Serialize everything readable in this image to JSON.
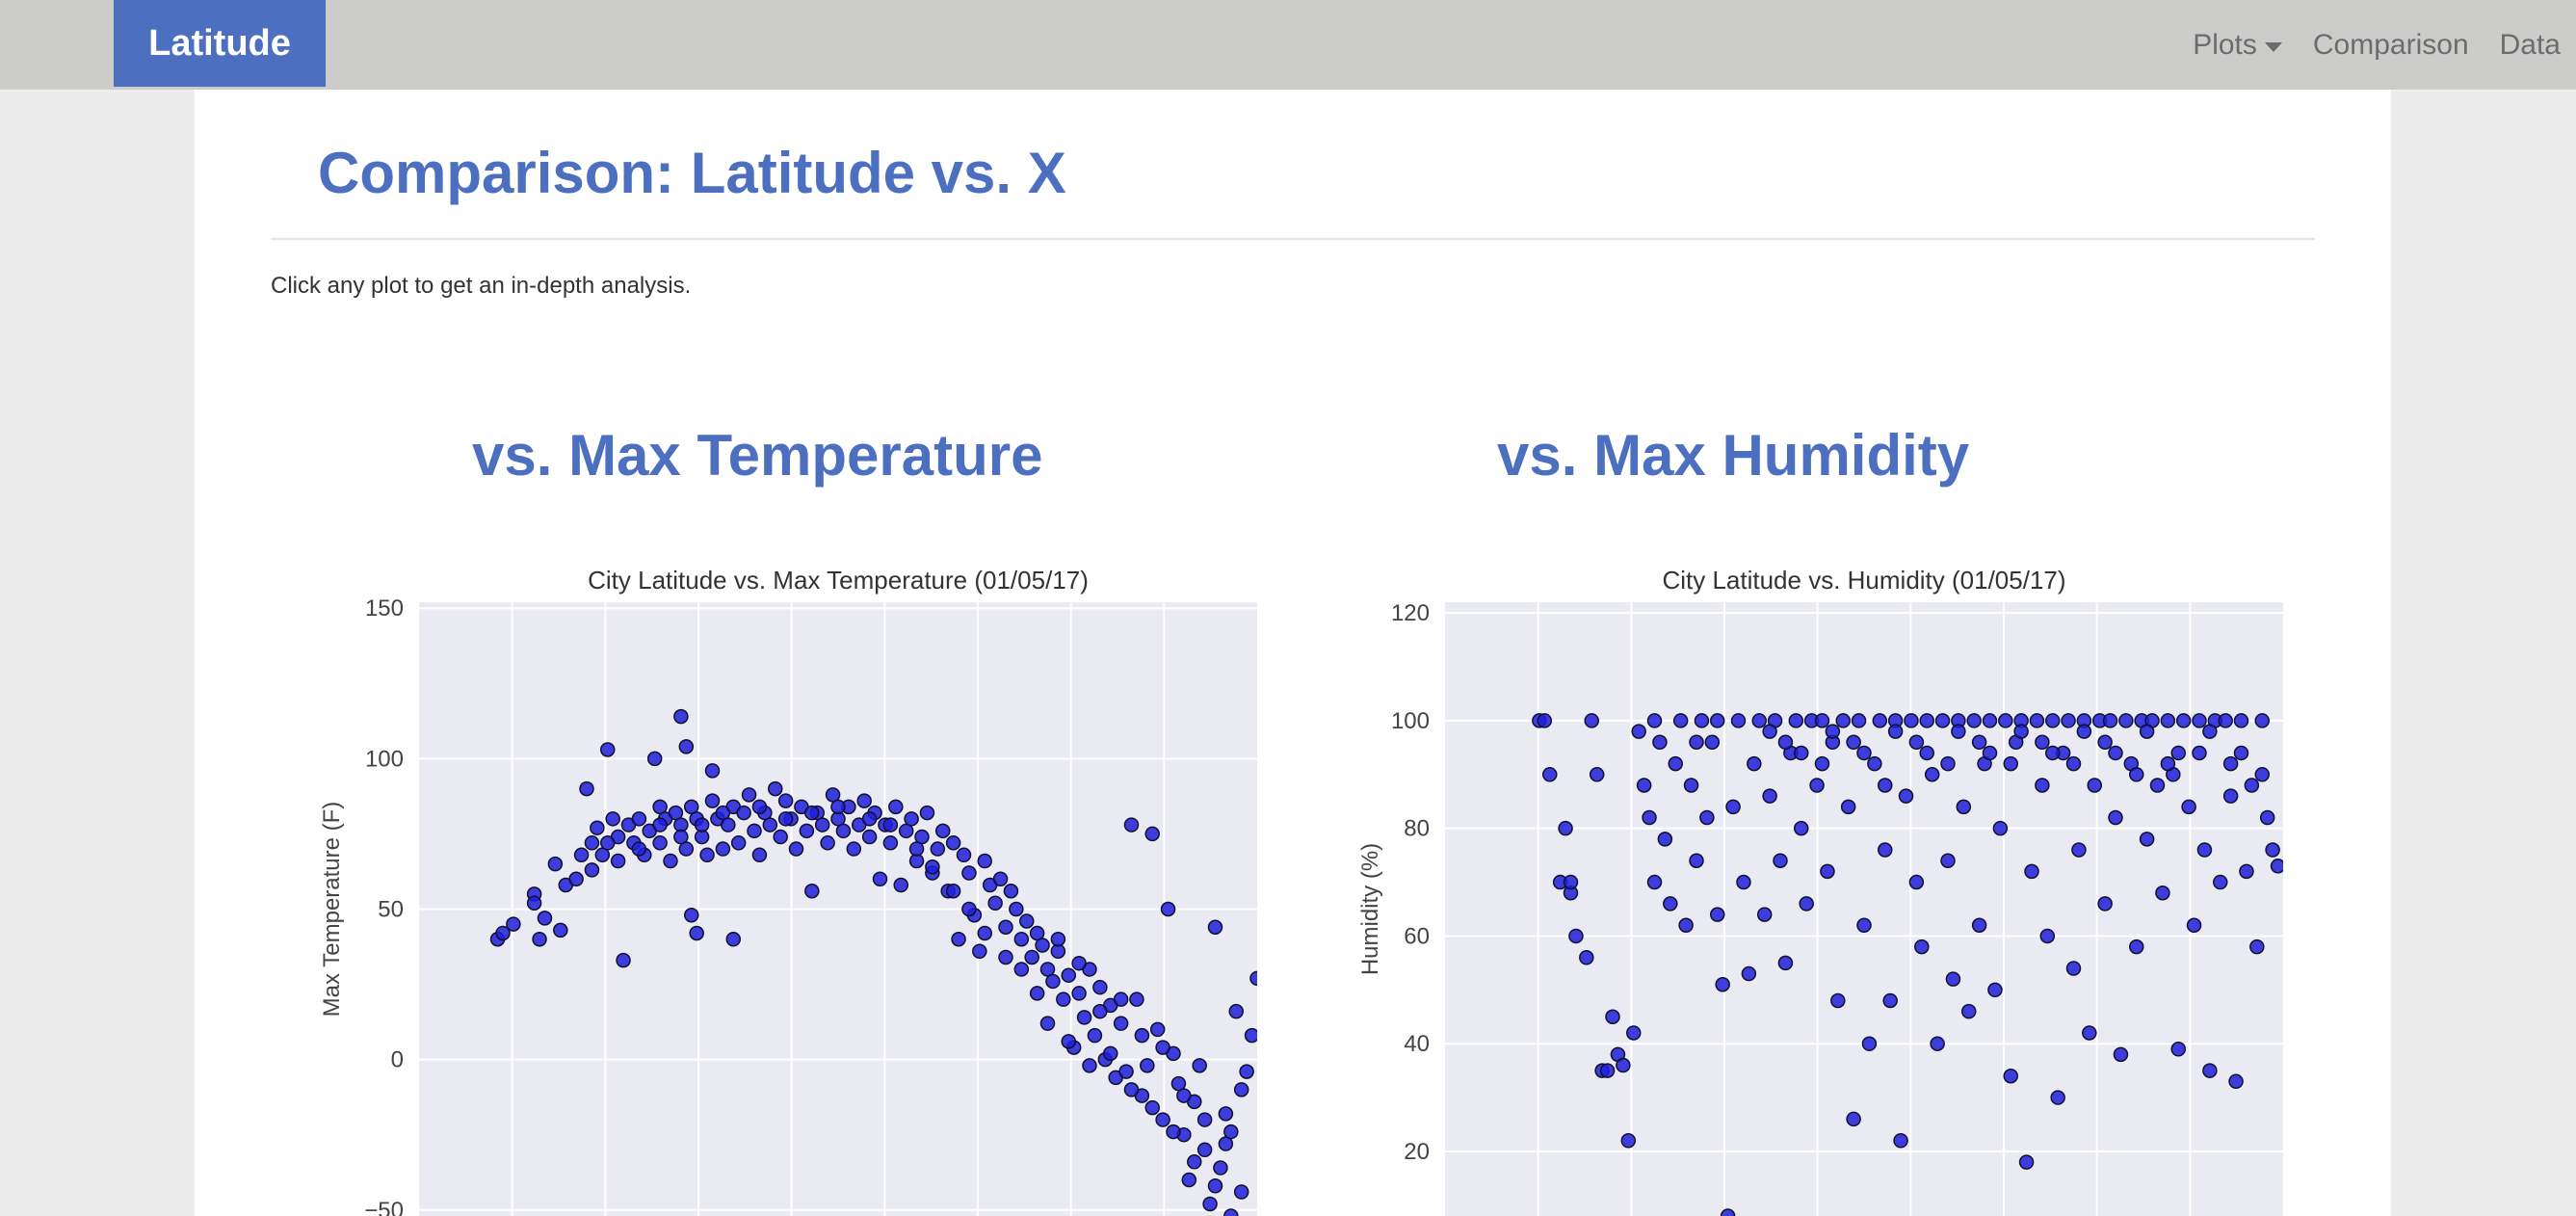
{
  "brand": "Latitude",
  "nav": {
    "plots": "Plots",
    "comparison": "Comparison",
    "data": "Data"
  },
  "page": {
    "title": "Comparison: Latitude vs. X",
    "instructions": "Click any plot to get an in-depth analysis."
  },
  "colors": {
    "brand": "#4d6fbf",
    "navbar": "#cccdcb",
    "plot_bg": "#eaeaf2",
    "marker": "#1f1fdb"
  },
  "plots": [
    {
      "heading": "vs. Max Temperature"
    },
    {
      "heading": "vs. Max Humidity"
    }
  ],
  "chart_data": [
    {
      "type": "scatter",
      "title": "City Latitude vs. Max Temperature (01/05/17)",
      "xlabel": "",
      "ylabel": "Max Temperature (F)",
      "xlim": [
        -60,
        100
      ],
      "ylim": [
        -52,
        152
      ],
      "yticks": [
        150,
        100,
        50,
        0,
        -50
      ],
      "grid": true,
      "points": [
        [
          -45,
          40
        ],
        [
          -44,
          42
        ],
        [
          -42,
          45
        ],
        [
          -38,
          55
        ],
        [
          -38,
          52
        ],
        [
          -37,
          40
        ],
        [
          -36,
          47
        ],
        [
          -34,
          65
        ],
        [
          -33,
          43
        ],
        [
          -32,
          58
        ],
        [
          -30,
          60
        ],
        [
          -29,
          68
        ],
        [
          -28,
          90
        ],
        [
          -27,
          63
        ],
        [
          -27,
          72
        ],
        [
          -26,
          77
        ],
        [
          -25,
          68
        ],
        [
          -24,
          103
        ],
        [
          -23,
          80
        ],
        [
          -22,
          74
        ],
        [
          -22,
          66
        ],
        [
          -21,
          33
        ],
        [
          -20,
          78
        ],
        [
          -19,
          72
        ],
        [
          -18,
          80
        ],
        [
          -17,
          68
        ],
        [
          -16,
          76
        ],
        [
          -15,
          100
        ],
        [
          -14,
          84
        ],
        [
          -14,
          72
        ],
        [
          -13,
          80
        ],
        [
          -12,
          66
        ],
        [
          -11,
          82
        ],
        [
          -10,
          114
        ],
        [
          -10,
          78
        ],
        [
          -9,
          104
        ],
        [
          -9,
          70
        ],
        [
          -8,
          84
        ],
        [
          -8,
          48
        ],
        [
          -7,
          42
        ],
        [
          -7,
          80
        ],
        [
          -6,
          74
        ],
        [
          -5,
          68
        ],
        [
          -4,
          86
        ],
        [
          -4,
          96
        ],
        [
          -3,
          80
        ],
        [
          -2,
          70
        ],
        [
          -1,
          78
        ],
        [
          0,
          84
        ],
        [
          0,
          40
        ],
        [
          1,
          72
        ],
        [
          2,
          82
        ],
        [
          3,
          88
        ],
        [
          4,
          76
        ],
        [
          5,
          68
        ],
        [
          6,
          82
        ],
        [
          7,
          78
        ],
        [
          8,
          90
        ],
        [
          9,
          74
        ],
        [
          10,
          86
        ],
        [
          11,
          80
        ],
        [
          12,
          70
        ],
        [
          13,
          84
        ],
        [
          14,
          76
        ],
        [
          15,
          56
        ],
        [
          16,
          82
        ],
        [
          17,
          78
        ],
        [
          18,
          72
        ],
        [
          19,
          88
        ],
        [
          20,
          80
        ],
        [
          21,
          76
        ],
        [
          22,
          84
        ],
        [
          23,
          70
        ],
        [
          24,
          78
        ],
        [
          25,
          86
        ],
        [
          26,
          74
        ],
        [
          27,
          82
        ],
        [
          28,
          60
        ],
        [
          29,
          78
        ],
        [
          30,
          72
        ],
        [
          31,
          84
        ],
        [
          32,
          58
        ],
        [
          33,
          76
        ],
        [
          34,
          80
        ],
        [
          35,
          66
        ],
        [
          36,
          74
        ],
        [
          37,
          82
        ],
        [
          38,
          62
        ],
        [
          39,
          70
        ],
        [
          40,
          76
        ],
        [
          41,
          56
        ],
        [
          42,
          72
        ],
        [
          43,
          40
        ],
        [
          44,
          68
        ],
        [
          45,
          62
        ],
        [
          46,
          48
        ],
        [
          47,
          36
        ],
        [
          48,
          66
        ],
        [
          49,
          58
        ],
        [
          50,
          52
        ],
        [
          51,
          60
        ],
        [
          52,
          44
        ],
        [
          53,
          56
        ],
        [
          54,
          50
        ],
        [
          55,
          40
        ],
        [
          56,
          46
        ],
        [
          57,
          34
        ],
        [
          58,
          42
        ],
        [
          59,
          38
        ],
        [
          60,
          30
        ],
        [
          61,
          26
        ],
        [
          62,
          36
        ],
        [
          63,
          20
        ],
        [
          64,
          28
        ],
        [
          65,
          4
        ],
        [
          66,
          22
        ],
        [
          67,
          14
        ],
        [
          68,
          30
        ],
        [
          69,
          8
        ],
        [
          70,
          24
        ],
        [
          71,
          0
        ],
        [
          72,
          18
        ],
        [
          73,
          -6
        ],
        [
          74,
          12
        ],
        [
          75,
          -4
        ],
        [
          76,
          78
        ],
        [
          77,
          20
        ],
        [
          78,
          -12
        ],
        [
          79,
          -2
        ],
        [
          80,
          75
        ],
        [
          81,
          10
        ],
        [
          82,
          -20
        ],
        [
          83,
          50
        ],
        [
          84,
          2
        ],
        [
          85,
          -8
        ],
        [
          86,
          -25
        ],
        [
          87,
          -40
        ],
        [
          88,
          -14
        ],
        [
          89,
          -2
        ],
        [
          90,
          -30
        ],
        [
          91,
          -48
        ],
        [
          92,
          44
        ],
        [
          93,
          -36
        ],
        [
          94,
          -18
        ],
        [
          95,
          -52
        ],
        [
          96,
          16
        ],
        [
          97,
          -44
        ],
        [
          98,
          -4
        ],
        [
          99,
          8
        ],
        [
          100,
          27
        ],
        [
          58,
          22
        ],
        [
          55,
          30
        ],
        [
          52,
          34
        ],
        [
          48,
          42
        ],
        [
          45,
          50
        ],
        [
          42,
          56
        ],
        [
          38,
          64
        ],
        [
          35,
          70
        ],
        [
          30,
          78
        ],
        [
          26,
          80
        ],
        [
          20,
          84
        ],
        [
          15,
          82
        ],
        [
          10,
          80
        ],
        [
          5,
          84
        ],
        [
          -2,
          82
        ],
        [
          -6,
          78
        ],
        [
          -10,
          74
        ],
        [
          -14,
          78
        ],
        [
          -18,
          70
        ],
        [
          -24,
          72
        ],
        [
          62,
          40
        ],
        [
          66,
          32
        ],
        [
          70,
          16
        ],
        [
          74,
          20
        ],
        [
          78,
          8
        ],
        [
          82,
          4
        ],
        [
          86,
          -12
        ],
        [
          90,
          -20
        ],
        [
          94,
          -28
        ],
        [
          97,
          -10
        ],
        [
          60,
          12
        ],
        [
          64,
          6
        ],
        [
          68,
          -2
        ],
        [
          72,
          2
        ],
        [
          76,
          -10
        ],
        [
          80,
          -16
        ],
        [
          84,
          -24
        ],
        [
          88,
          -34
        ],
        [
          92,
          -42
        ],
        [
          95,
          -24
        ]
      ]
    },
    {
      "type": "scatter",
      "title": "City Latitude vs. Humidity (01/05/17)",
      "xlabel": "",
      "ylabel": "Humidity (%)",
      "xlim": [
        -60,
        100
      ],
      "ylim": [
        8,
        122
      ],
      "yticks": [
        120,
        100,
        80,
        60,
        40,
        20
      ],
      "grid": true,
      "points": [
        [
          -42,
          100
        ],
        [
          -41,
          100
        ],
        [
          -40,
          90
        ],
        [
          -38,
          70
        ],
        [
          -37,
          80
        ],
        [
          -36,
          68
        ],
        [
          -35,
          60
        ],
        [
          -33,
          56
        ],
        [
          -32,
          100
        ],
        [
          -31,
          90
        ],
        [
          -30,
          35
        ],
        [
          -29,
          35
        ],
        [
          -28,
          45
        ],
        [
          -27,
          38
        ],
        [
          -26,
          36
        ],
        [
          -25,
          22
        ],
        [
          -24,
          42
        ],
        [
          -23,
          98
        ],
        [
          -22,
          88
        ],
        [
          -21,
          82
        ],
        [
          -20,
          70
        ],
        [
          -19,
          96
        ],
        [
          -18,
          78
        ],
        [
          -17,
          66
        ],
        [
          -16,
          92
        ],
        [
          -15,
          100
        ],
        [
          -14,
          62
        ],
        [
          -13,
          88
        ],
        [
          -12,
          74
        ],
        [
          -11,
          100
        ],
        [
          -10,
          82
        ],
        [
          -9,
          96
        ],
        [
          -8,
          64
        ],
        [
          -7,
          51
        ],
        [
          -6,
          8
        ],
        [
          -5,
          84
        ],
        [
          -4,
          100
        ],
        [
          -3,
          70
        ],
        [
          -2,
          53
        ],
        [
          -1,
          92
        ],
        [
          0,
          100
        ],
        [
          1,
          64
        ],
        [
          2,
          86
        ],
        [
          3,
          100
        ],
        [
          4,
          74
        ],
        [
          5,
          55
        ],
        [
          6,
          94
        ],
        [
          7,
          100
        ],
        [
          8,
          80
        ],
        [
          9,
          66
        ],
        [
          10,
          100
        ],
        [
          11,
          88
        ],
        [
          12,
          100
        ],
        [
          13,
          72
        ],
        [
          14,
          96
        ],
        [
          15,
          48
        ],
        [
          16,
          100
        ],
        [
          17,
          84
        ],
        [
          18,
          26
        ],
        [
          19,
          100
        ],
        [
          20,
          62
        ],
        [
          21,
          40
        ],
        [
          22,
          92
        ],
        [
          23,
          100
        ],
        [
          24,
          76
        ],
        [
          25,
          48
        ],
        [
          26,
          100
        ],
        [
          27,
          22
        ],
        [
          28,
          86
        ],
        [
          29,
          100
        ],
        [
          30,
          70
        ],
        [
          31,
          58
        ],
        [
          32,
          100
        ],
        [
          33,
          90
        ],
        [
          34,
          40
        ],
        [
          35,
          100
        ],
        [
          36,
          74
        ],
        [
          37,
          52
        ],
        [
          38,
          100
        ],
        [
          39,
          84
        ],
        [
          40,
          46
        ],
        [
          41,
          100
        ],
        [
          42,
          62
        ],
        [
          43,
          92
        ],
        [
          44,
          100
        ],
        [
          45,
          50
        ],
        [
          46,
          80
        ],
        [
          47,
          100
        ],
        [
          48,
          34
        ],
        [
          49,
          96
        ],
        [
          50,
          100
        ],
        [
          51,
          18
        ],
        [
          52,
          72
        ],
        [
          53,
          100
        ],
        [
          54,
          88
        ],
        [
          55,
          60
        ],
        [
          56,
          100
        ],
        [
          57,
          30
        ],
        [
          58,
          94
        ],
        [
          59,
          100
        ],
        [
          60,
          54
        ],
        [
          61,
          76
        ],
        [
          62,
          100
        ],
        [
          63,
          42
        ],
        [
          64,
          88
        ],
        [
          65,
          100
        ],
        [
          66,
          66
        ],
        [
          67,
          100
        ],
        [
          68,
          82
        ],
        [
          69,
          38
        ],
        [
          70,
          100
        ],
        [
          71,
          92
        ],
        [
          72,
          58
        ],
        [
          73,
          100
        ],
        [
          74,
          78
        ],
        [
          75,
          100
        ],
        [
          76,
          88
        ],
        [
          77,
          68
        ],
        [
          78,
          100
        ],
        [
          79,
          90
        ],
        [
          80,
          39
        ],
        [
          81,
          100
        ],
        [
          82,
          84
        ],
        [
          83,
          62
        ],
        [
          84,
          100
        ],
        [
          85,
          76
        ],
        [
          86,
          35
        ],
        [
          87,
          100
        ],
        [
          88,
          70
        ],
        [
          89,
          100
        ],
        [
          90,
          86
        ],
        [
          91,
          33
        ],
        [
          92,
          100
        ],
        [
          93,
          72
        ],
        [
          94,
          88
        ],
        [
          95,
          58
        ],
        [
          96,
          100
        ],
        [
          97,
          82
        ],
        [
          98,
          76
        ],
        [
          99,
          73
        ],
        [
          -36,
          70
        ],
        [
          -20,
          100
        ],
        [
          -8,
          100
        ],
        [
          5,
          96
        ],
        [
          12,
          92
        ],
        [
          18,
          96
        ],
        [
          24,
          88
        ],
        [
          30,
          96
        ],
        [
          36,
          92
        ],
        [
          42,
          96
        ],
        [
          48,
          92
        ],
        [
          54,
          96
        ],
        [
          60,
          92
        ],
        [
          66,
          96
        ],
        [
          72,
          90
        ],
        [
          78,
          92
        ],
        [
          84,
          94
        ],
        [
          90,
          92
        ],
        [
          96,
          90
        ],
        [
          -12,
          96
        ],
        [
          2,
          98
        ],
        [
          8,
          94
        ],
        [
          14,
          98
        ],
        [
          20,
          94
        ],
        [
          26,
          98
        ],
        [
          32,
          94
        ],
        [
          38,
          98
        ],
        [
          44,
          94
        ],
        [
          50,
          98
        ],
        [
          56,
          94
        ],
        [
          62,
          98
        ],
        [
          68,
          94
        ],
        [
          74,
          98
        ],
        [
          80,
          94
        ],
        [
          86,
          98
        ],
        [
          92,
          94
        ]
      ]
    }
  ]
}
